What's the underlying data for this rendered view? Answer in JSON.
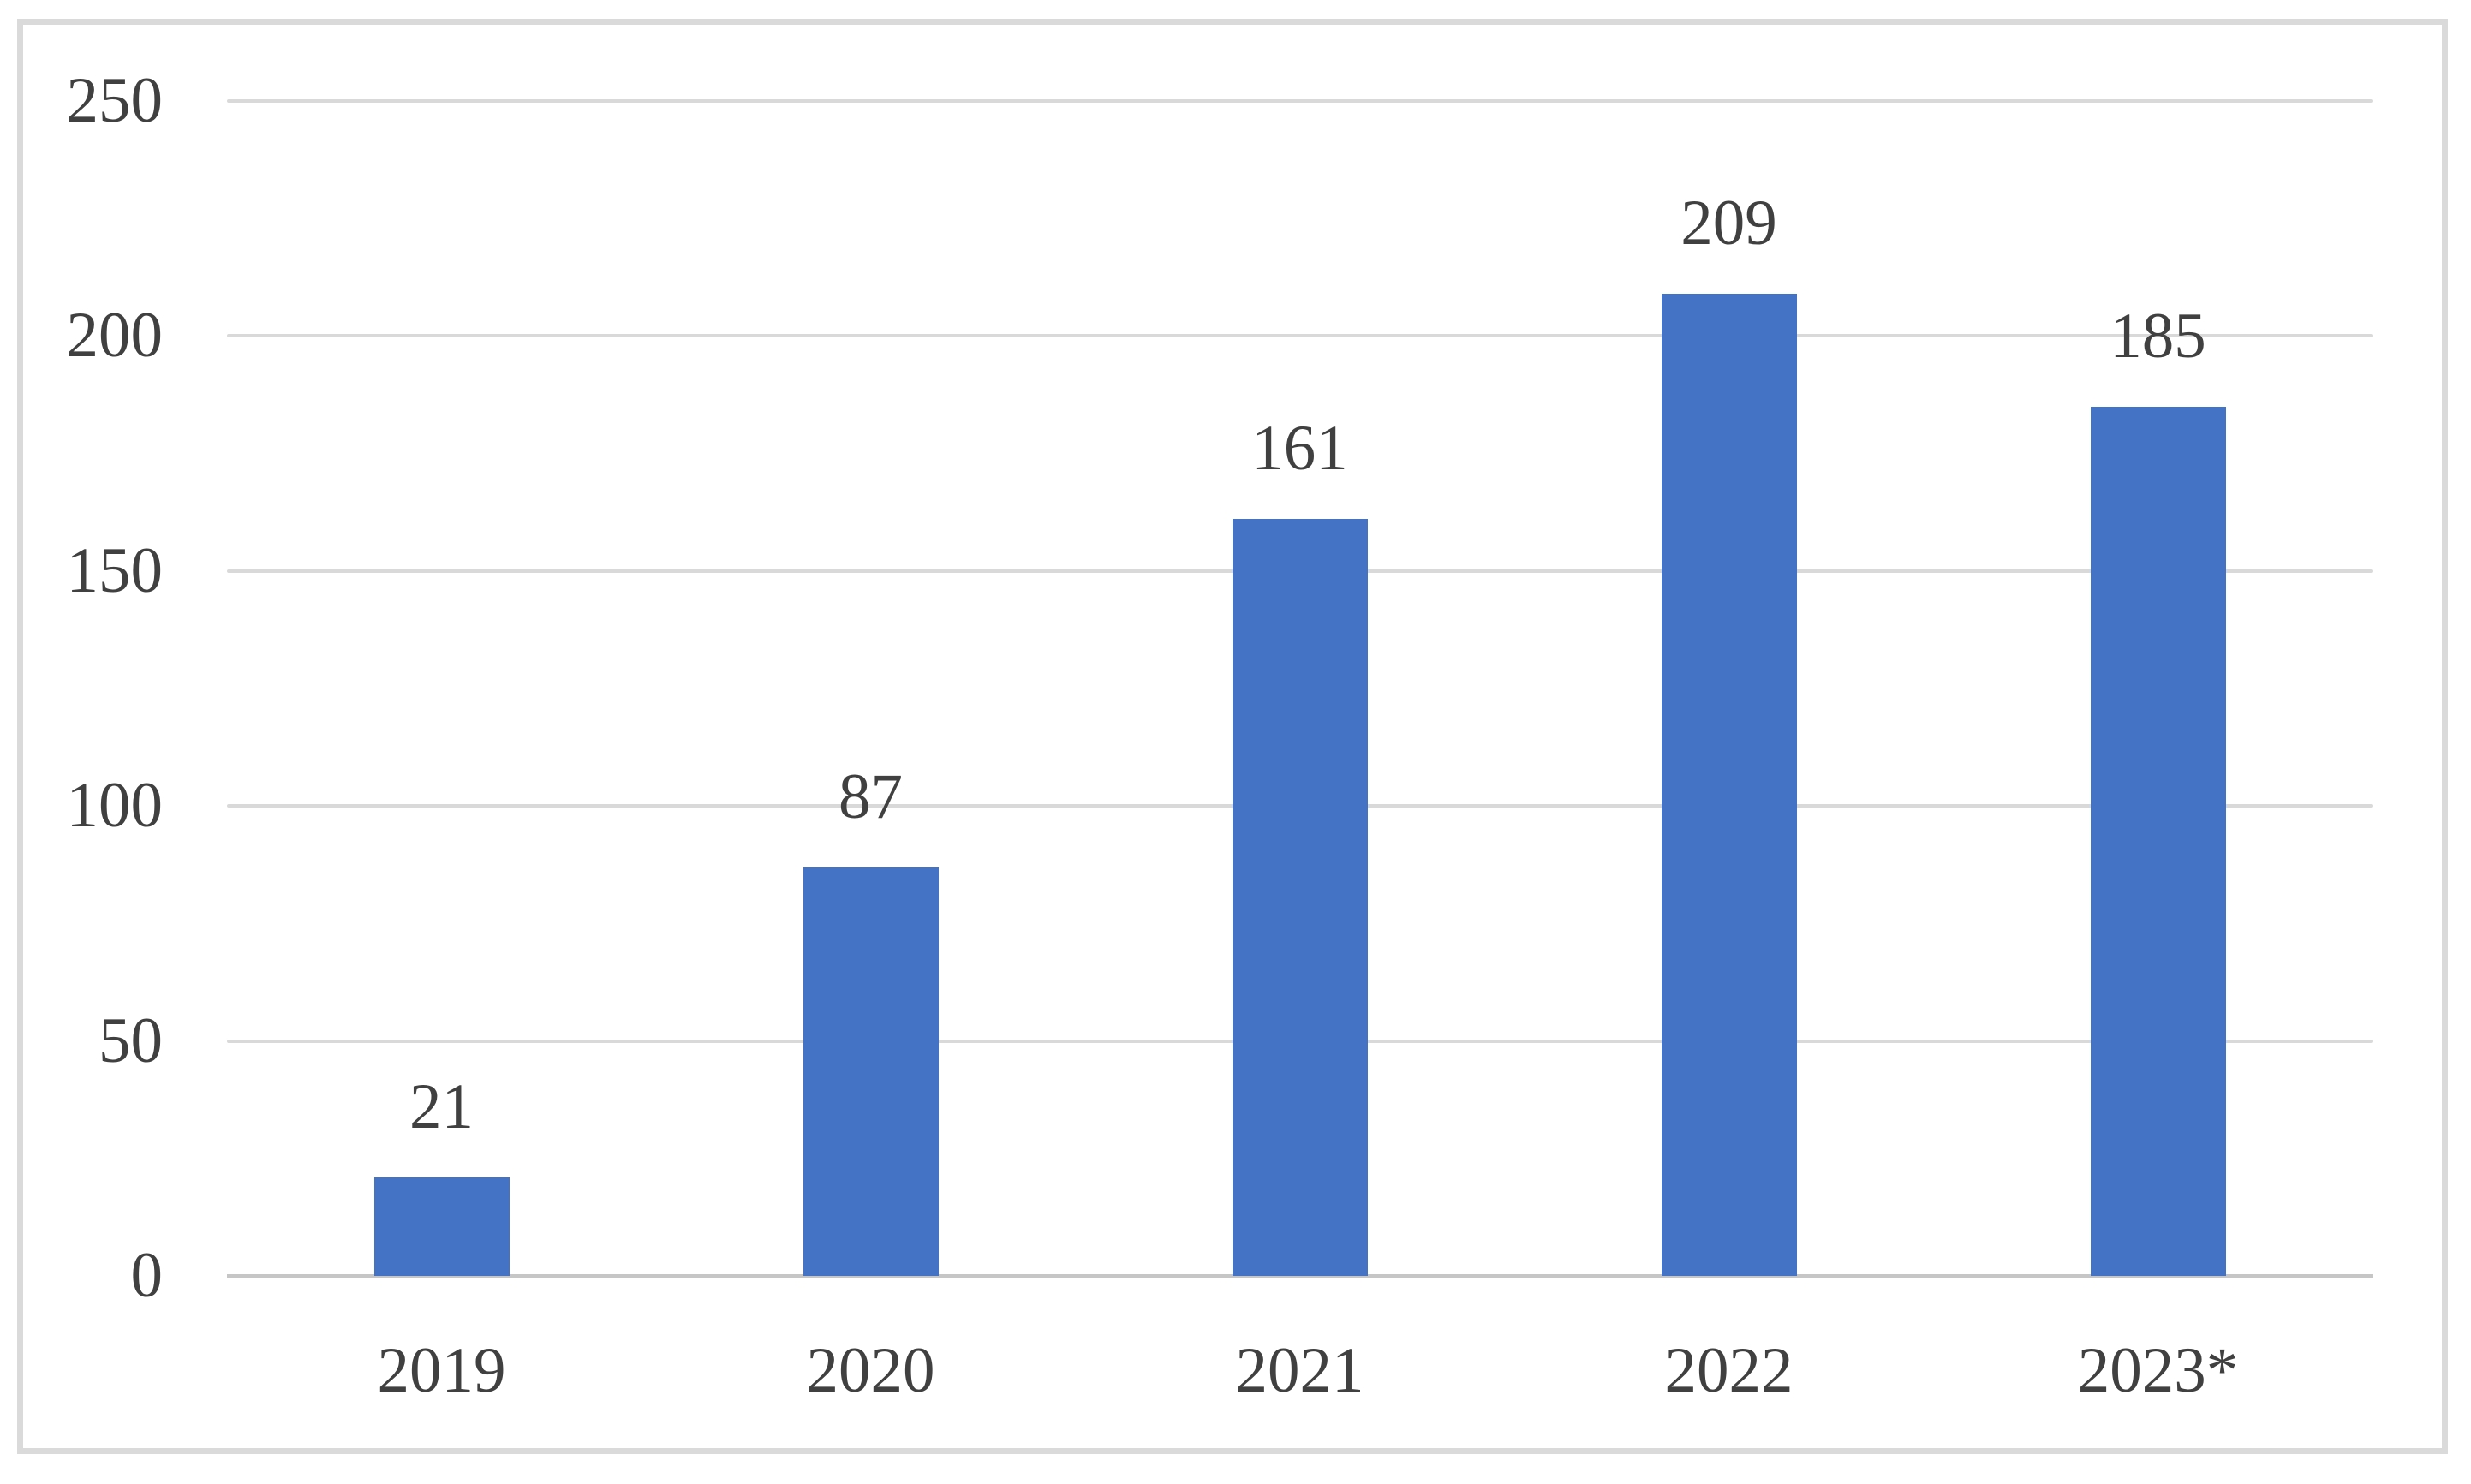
{
  "chart_data": {
    "type": "bar",
    "title": "",
    "xlabel": "",
    "ylabel": "",
    "categories": [
      "2019",
      "2020",
      "2021",
      "2022",
      "2023*"
    ],
    "values": [
      21,
      87,
      161,
      209,
      185
    ],
    "data_labels": [
      "21",
      "87",
      "161",
      "209",
      "185"
    ],
    "yticks": [
      0,
      50,
      100,
      150,
      200,
      250
    ],
    "ytick_labels": [
      "0",
      "50",
      "100",
      "150",
      "200",
      "250"
    ],
    "ylim": [
      0,
      250
    ],
    "grid": "horizontal",
    "legend_position": "none",
    "colors": {
      "bar": "#4472c4",
      "gridline": "#d9d9d9",
      "axis_line": "#c6c6c6",
      "text": "#404040",
      "frame_border": "#dadada",
      "background": "#ffffff"
    }
  }
}
